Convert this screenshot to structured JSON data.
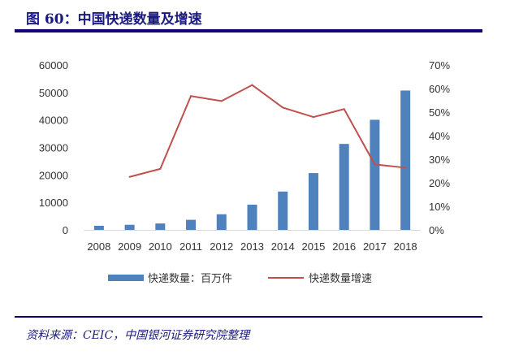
{
  "title": "图 60：中国快递数量及增速",
  "source": "资料来源：CEIC，中国银河证券研究院整理",
  "chart_data": {
    "type": "bar+line",
    "categories": [
      "2008",
      "2009",
      "2010",
      "2011",
      "2012",
      "2013",
      "2014",
      "2015",
      "2016",
      "2017",
      "2018"
    ],
    "series": [
      {
        "name": "快递数量：百万件",
        "type": "bar",
        "axis": "left",
        "color": "#4f81bd",
        "values": [
          1500,
          1860,
          2340,
          3670,
          5690,
          9190,
          13960,
          20670,
          31280,
          40060,
          50710
        ]
      },
      {
        "name": "快递数量增速",
        "type": "line",
        "axis": "right",
        "color": "#c0504d",
        "values": [
          null,
          22.5,
          25.9,
          56.8,
          54.7,
          61.5,
          51.9,
          47.9,
          51.3,
          27.8,
          26.4
        ]
      }
    ],
    "left_axis": {
      "ylim": [
        0,
        60000
      ],
      "ticks": [
        "0",
        "10000",
        "20000",
        "30000",
        "40000",
        "50000",
        "60000"
      ]
    },
    "right_axis": {
      "ylim": [
        0,
        70
      ],
      "ticks": [
        "0%",
        "10%",
        "20%",
        "30%",
        "40%",
        "50%",
        "60%",
        "70%"
      ]
    },
    "grid": false,
    "legend": "bottom"
  }
}
